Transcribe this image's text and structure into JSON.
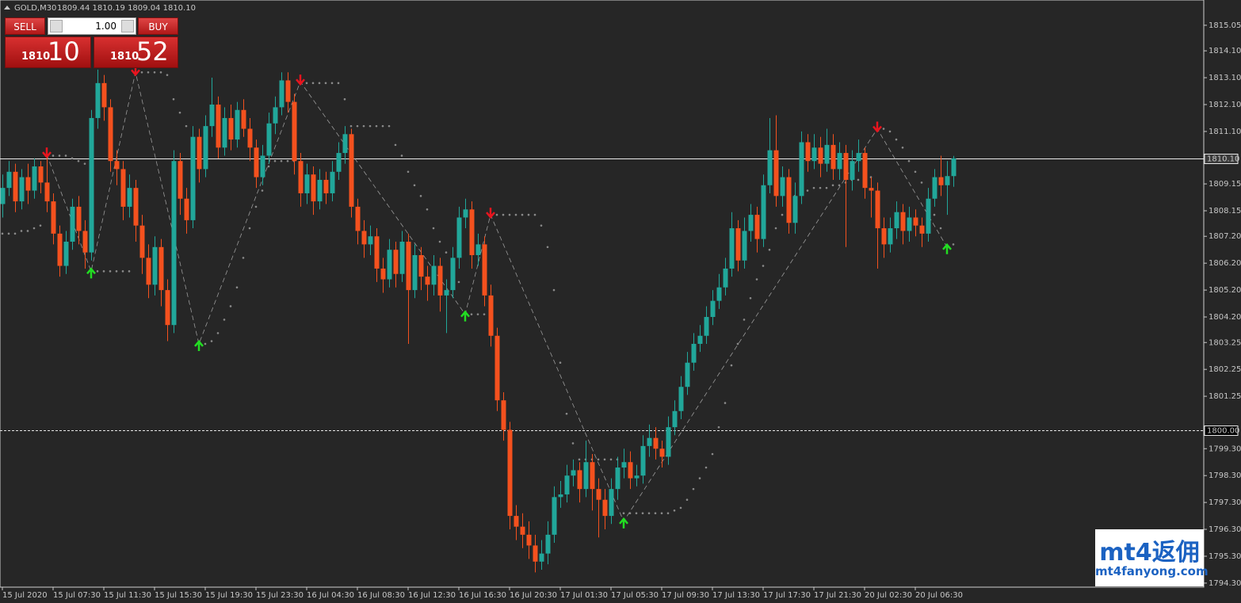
{
  "header": {
    "symbol": "GOLD,M30",
    "ohlc": "1809.44 1810.19 1809.04 1810.10"
  },
  "trade": {
    "sell_label": "SELL",
    "buy_label": "BUY",
    "lots": "1.00",
    "bid_prefix": "1810",
    "bid_digits": "10",
    "ask_prefix": "1810",
    "ask_digits": "52"
  },
  "watermark": {
    "logo_latin": "mt4",
    "logo_cjk": "返佣",
    "url": "mt4fanyong.com"
  },
  "chart_data": {
    "type": "candlestick",
    "up_color": "#21a79a",
    "down_color": "#f4511e",
    "sar_color": "#8a8a8a",
    "zigzag_color": "#9a9a9a",
    "fractal_up_color": "#22dd22",
    "fractal_down_color": "#e8141e",
    "ylim": [
      1794.15,
      1815.99
    ],
    "yticks": [
      1815.05,
      {
        "value": 1814.1,
        "label": "1814.10"
      },
      {
        "value": 1813.1,
        "label": "1813.10"
      },
      {
        "value": 1812.1,
        "label": "1812.10"
      },
      {
        "value": 1811.1,
        "label": "1811.10"
      },
      1809.15,
      1808.15,
      {
        "value": 1807.2,
        "label": "1807.20"
      },
      {
        "value": 1806.2,
        "label": "1806.20"
      },
      {
        "value": 1805.2,
        "label": "1805.20"
      },
      {
        "value": 1804.2,
        "label": "1804.20"
      },
      1803.25,
      1802.25,
      1801.25,
      {
        "value": 1799.3,
        "label": "1799.30"
      },
      {
        "value": 1798.3,
        "label": "1798.30"
      },
      {
        "value": 1797.3,
        "label": "1797.30"
      },
      {
        "value": 1796.3,
        "label": "1796.30"
      },
      {
        "value": 1795.3,
        "label": "1795.30"
      },
      {
        "value": 1794.3,
        "label": "1794.30"
      }
    ],
    "hlines": [
      {
        "value": 1810.1,
        "label": "1810.10",
        "style": "solid"
      },
      {
        "value": 1800,
        "label": "1800.00",
        "style": "dashed"
      }
    ],
    "categories": [
      "15 Jul 2020",
      null,
      null,
      null,
      null,
      null,
      null,
      null,
      "15 Jul 07:30",
      null,
      null,
      null,
      null,
      null,
      null,
      null,
      "15 Jul 11:30",
      null,
      null,
      null,
      null,
      null,
      null,
      null,
      "15 Jul 15:30",
      null,
      null,
      null,
      null,
      null,
      null,
      null,
      "15 Jul 19:30",
      null,
      null,
      null,
      null,
      null,
      null,
      null,
      "15 Jul 23:30",
      null,
      null,
      null,
      null,
      null,
      null,
      null,
      "16 Jul 04:30",
      null,
      null,
      null,
      null,
      null,
      null,
      null,
      "16 Jul 08:30",
      null,
      null,
      null,
      null,
      null,
      null,
      null,
      "16 Jul 12:30",
      null,
      null,
      null,
      null,
      null,
      null,
      null,
      "16 Jul 16:30",
      null,
      null,
      null,
      null,
      null,
      null,
      null,
      "16 Jul 20:30",
      null,
      null,
      null,
      null,
      null,
      null,
      null,
      "17 Jul 01:30",
      null,
      null,
      null,
      null,
      null,
      null,
      null,
      "17 Jul 05:30",
      null,
      null,
      null,
      null,
      null,
      null,
      null,
      "17 Jul 09:30",
      null,
      null,
      null,
      null,
      null,
      null,
      null,
      "17 Jul 13:30",
      null,
      null,
      null,
      null,
      null,
      null,
      null,
      "17 Jul 17:30",
      null,
      null,
      null,
      null,
      null,
      null,
      null,
      "17 Jul 21:30",
      null,
      null,
      null,
      null,
      null,
      null,
      null,
      "20 Jul 02:30",
      null,
      null,
      null,
      null,
      null,
      null,
      null,
      "20 Jul 06:30",
      null,
      null,
      null,
      null,
      null,
      null
    ],
    "open": [
      1808.4,
      1809.0,
      1809.6,
      1808.5,
      1809.4,
      1808.9,
      1809.8,
      1809.2,
      1808.5,
      1807.3,
      1806.1,
      1807.0,
      1808.3,
      1807.4,
      1806.6,
      1811.6,
      1812.9,
      1812.0,
      1810.0,
      1809.7,
      1808.3,
      1809.0,
      1807.6,
      1806.4,
      1805.4,
      1806.8,
      1805.2,
      1803.9,
      1810.0,
      1808.6,
      1807.8,
      1810.9,
      1809.7,
      1811.3,
      1812.1,
      1810.5,
      1811.6,
      1810.8,
      1811.9,
      1811.2,
      1810.5,
      1809.4,
      1810.2,
      1811.4,
      1812.0,
      1813.0,
      1812.2,
      1810.0,
      1808.8,
      1809.5,
      1808.5,
      1809.3,
      1808.8,
      1809.6,
      1810.3,
      1811.0,
      1808.3,
      1807.4,
      1806.9,
      1807.2,
      1806.0,
      1805.6,
      1806.7,
      1805.8,
      1807.0,
      1805.2,
      1806.5,
      1805.7,
      1805.4,
      1806.1,
      1805.0,
      1805.2,
      1806.4,
      1807.9,
      1808.2,
      1806.5,
      1806.9,
      1805.0,
      1803.5,
      1801.1,
      1800.0,
      1796.8,
      1796.4,
      1796.1,
      1795.7,
      1795.1,
      1795.4,
      1796.1,
      1797.5,
      1797.6,
      1798.3,
      1798.5,
      1797.8,
      1798.8,
      1797.8,
      1797.4,
      1796.8,
      1797.8,
      1798.6,
      1798.8,
      1798.2,
      1798.3,
      1799.4,
      1799.7,
      1799.3,
      1799.0,
      1800.1,
      1800.7,
      1801.6,
      1802.5,
      1803.2,
      1803.5,
      1804.2,
      1804.8,
      1805.3,
      1806.0,
      1807.5,
      1806.3,
      1807.4,
      1808.0,
      1807.1,
      1809.1,
      1810.4,
      1808.7,
      1809.4,
      1807.7,
      1808.7,
      1810.7,
      1810.0,
      1810.5,
      1809.9,
      1810.6,
      1809.7,
      1810.3,
      1809.3,
      1810.0,
      1810.3,
      1809.0,
      1808.9,
      1807.5,
      1806.9,
      1807.5,
      1808.1,
      1807.4,
      1807.9,
      1807.6,
      1807.3,
      1808.6,
      1809.4,
      1809.1,
      1809.44
    ],
    "high": [
      1809.5,
      1810.0,
      1809.9,
      1809.7,
      1809.9,
      1810.1,
      1810.0,
      1810.2,
      1808.8,
      1807.6,
      1807.4,
      1808.6,
      1808.7,
      1807.8,
      1811.9,
      1813.4,
      1813.2,
      1812.3,
      1810.4,
      1810.0,
      1809.5,
      1809.3,
      1808.0,
      1806.9,
      1807.2,
      1807.1,
      1805.6,
      1810.4,
      1810.3,
      1809.0,
      1811.3,
      1811.2,
      1811.7,
      1813.1,
      1812.4,
      1812.0,
      1812.1,
      1812.2,
      1812.3,
      1811.6,
      1810.8,
      1810.6,
      1811.8,
      1812.4,
      1813.3,
      1813.3,
      1812.5,
      1810.3,
      1809.9,
      1809.8,
      1809.7,
      1809.6,
      1810.0,
      1810.7,
      1811.3,
      1811.2,
      1808.6,
      1807.8,
      1807.6,
      1807.5,
      1806.4,
      1807.1,
      1807.0,
      1807.4,
      1807.3,
      1806.9,
      1806.8,
      1806.1,
      1806.5,
      1806.4,
      1805.6,
      1806.8,
      1808.3,
      1808.6,
      1808.5,
      1807.3,
      1807.2,
      1805.4,
      1803.8,
      1801.4,
      1800.3,
      1797.2,
      1796.9,
      1796.6,
      1796.1,
      1795.9,
      1796.6,
      1797.9,
      1798.1,
      1798.7,
      1798.9,
      1798.8,
      1799.6,
      1799.1,
      1798.2,
      1797.8,
      1798.2,
      1799.0,
      1799.3,
      1799.2,
      1798.7,
      1799.8,
      1800.2,
      1800.1,
      1799.6,
      1800.5,
      1801.1,
      1802.0,
      1802.9,
      1803.6,
      1803.9,
      1804.6,
      1805.2,
      1805.8,
      1806.4,
      1808.1,
      1807.8,
      1807.9,
      1808.4,
      1808.3,
      1809.5,
      1811.6,
      1811.7,
      1809.8,
      1809.7,
      1809.2,
      1811.1,
      1811.0,
      1811.0,
      1810.9,
      1811.2,
      1811.0,
      1810.7,
      1810.6,
      1810.4,
      1810.8,
      1810.5,
      1809.4,
      1809.2,
      1807.9,
      1807.9,
      1808.5,
      1808.4,
      1808.3,
      1808.2,
      1807.9,
      1809.0,
      1809.7,
      1810.2,
      1810.0,
      1810.19
    ],
    "low": [
      1807.9,
      1808.7,
      1808.1,
      1808.2,
      1808.4,
      1808.6,
      1808.8,
      1808.1,
      1806.9,
      1805.7,
      1805.8,
      1806.7,
      1806.9,
      1806.0,
      1806.3,
      1811.2,
      1811.5,
      1809.6,
      1809.1,
      1807.8,
      1807.9,
      1807.0,
      1805.8,
      1804.9,
      1805.0,
      1804.6,
      1803.3,
      1803.6,
      1808.0,
      1807.3,
      1807.5,
      1809.2,
      1809.4,
      1810.9,
      1810.1,
      1810.2,
      1810.4,
      1810.5,
      1810.9,
      1810.0,
      1809.0,
      1809.1,
      1809.9,
      1811.0,
      1811.7,
      1811.8,
      1809.5,
      1808.3,
      1808.4,
      1808.0,
      1808.2,
      1808.4,
      1808.5,
      1809.3,
      1809.9,
      1807.9,
      1806.9,
      1806.4,
      1806.5,
      1805.5,
      1805.1,
      1805.3,
      1805.3,
      1805.5,
      1803.2,
      1804.9,
      1805.2,
      1804.8,
      1805.0,
      1804.4,
      1803.6,
      1804.9,
      1806.0,
      1807.5,
      1806.0,
      1806.1,
      1804.6,
      1803.1,
      1800.7,
      1799.6,
      1796.3,
      1795.9,
      1795.6,
      1795.2,
      1794.7,
      1794.8,
      1795.0,
      1795.8,
      1797.1,
      1797.3,
      1797.9,
      1797.3,
      1797.5,
      1797.0,
      1796.0,
      1796.3,
      1796.5,
      1797.4,
      1798.2,
      1797.8,
      1797.9,
      1798.0,
      1799.0,
      1798.9,
      1798.6,
      1798.7,
      1799.8,
      1800.4,
      1801.3,
      1802.2,
      1802.9,
      1803.2,
      1803.9,
      1804.5,
      1805.0,
      1805.7,
      1805.9,
      1806.0,
      1807.0,
      1806.6,
      1806.8,
      1808.8,
      1808.3,
      1808.3,
      1807.3,
      1807.3,
      1808.4,
      1809.6,
      1809.7,
      1809.4,
      1809.6,
      1809.3,
      1809.3,
      1806.8,
      1808.9,
      1809.6,
      1808.6,
      1807.9,
      1806.0,
      1806.4,
      1806.6,
      1807.1,
      1806.9,
      1807.0,
      1807.2,
      1806.8,
      1807.0,
      1808.3,
      1808.7,
      1808.0,
      1809.04
    ],
    "close": [
      1809.0,
      1809.6,
      1808.5,
      1809.4,
      1808.9,
      1809.8,
      1809.2,
      1808.5,
      1807.3,
      1806.1,
      1807.0,
      1808.3,
      1807.4,
      1806.6,
      1811.6,
      1812.9,
      1812.0,
      1810.0,
      1809.7,
      1808.3,
      1809.0,
      1807.6,
      1806.4,
      1805.4,
      1806.8,
      1805.2,
      1803.9,
      1810.0,
      1808.6,
      1807.8,
      1810.9,
      1809.7,
      1811.3,
      1812.1,
      1810.5,
      1811.6,
      1810.8,
      1811.9,
      1811.2,
      1810.5,
      1809.4,
      1810.2,
      1811.4,
      1812.0,
      1813.0,
      1812.2,
      1810.0,
      1808.8,
      1809.5,
      1808.5,
      1809.3,
      1808.8,
      1809.6,
      1810.3,
      1811.0,
      1808.3,
      1807.4,
      1806.9,
      1807.2,
      1806.0,
      1805.6,
      1806.7,
      1805.8,
      1807.0,
      1805.2,
      1806.5,
      1805.7,
      1805.4,
      1806.1,
      1805.0,
      1805.2,
      1806.4,
      1807.9,
      1808.2,
      1806.5,
      1806.9,
      1805.0,
      1803.5,
      1801.1,
      1800.0,
      1796.8,
      1796.4,
      1796.1,
      1795.7,
      1795.1,
      1795.4,
      1796.1,
      1797.5,
      1797.6,
      1798.3,
      1798.5,
      1797.8,
      1798.8,
      1797.8,
      1797.4,
      1796.8,
      1797.8,
      1798.6,
      1798.8,
      1798.2,
      1798.3,
      1799.4,
      1799.7,
      1799.3,
      1799.0,
      1800.1,
      1800.7,
      1801.6,
      1802.5,
      1803.2,
      1803.5,
      1804.2,
      1804.8,
      1805.3,
      1806.0,
      1807.5,
      1806.3,
      1807.4,
      1808.0,
      1807.1,
      1809.1,
      1810.4,
      1808.7,
      1809.4,
      1807.7,
      1808.7,
      1810.7,
      1810.0,
      1810.5,
      1809.9,
      1810.6,
      1809.7,
      1810.3,
      1809.3,
      1810.0,
      1810.3,
      1809.0,
      1808.9,
      1807.5,
      1806.9,
      1807.5,
      1808.1,
      1807.4,
      1807.9,
      1807.6,
      1807.3,
      1808.6,
      1809.4,
      1809.1,
      1809.44,
      1810.1
    ],
    "sar": [
      1807.3,
      1807.3,
      1807.3,
      1807.4,
      1807.4,
      1807.5,
      1807.6,
      1810.2,
      1810.2,
      1810.2,
      1810.2,
      1810.1,
      1810.0,
      1809.9,
      1805.9,
      1805.9,
      1805.9,
      1805.9,
      1805.9,
      1805.9,
      1805.9,
      1813.3,
      1813.3,
      1813.3,
      1813.3,
      1813.3,
      1813.2,
      1812.3,
      1811.8,
      1811.3,
      1810.8,
      1803.2,
      1803.2,
      1803.3,
      1803.6,
      1804.1,
      1804.6,
      1805.3,
      1806.4,
      1807.5,
      1808.3,
      1808.9,
      1809.8,
      1810.0,
      1810.0,
      1810.0,
      1810.0,
      1812.9,
      1812.9,
      1812.9,
      1812.9,
      1812.9,
      1812.9,
      1812.9,
      1812.3,
      1811.3,
      1811.3,
      1811.3,
      1811.3,
      1811.3,
      1811.3,
      1811.3,
      1810.6,
      1810.2,
      1809.6,
      1809.1,
      1808.7,
      1808.2,
      1807.5,
      1807.0,
      1806.6,
      1806.2,
      1805.5,
      1804.3,
      1804.3,
      1804.3,
      1804.3,
      1808.0,
      1808.0,
      1808.0,
      1808.0,
      1808.0,
      1808.0,
      1808.0,
      1808.0,
      1807.6,
      1806.8,
      1805.2,
      1802.5,
      1800.6,
      1799.5,
      1798.9,
      1798.9,
      1798.9,
      1798.9,
      1798.9,
      1798.9,
      1798.9,
      1796.9,
      1796.9,
      1796.9,
      1796.9,
      1796.9,
      1796.9,
      1796.9,
      1796.9,
      1797.0,
      1797.1,
      1797.4,
      1797.8,
      1798.2,
      1798.6,
      1799.1,
      1800.1,
      1801.0,
      1802.4,
      1803.2,
      1804.1,
      1804.9,
      1805.6,
      1806.1,
      1806.7,
      1807.5,
      1808.0,
      1808.5,
      1808.7,
      1808.8,
      1808.9,
      1809.0,
      1809.0,
      1809.0,
      1809.1,
      1809.1,
      1809.2,
      1809.3,
      1809.3,
      1809.4,
      1809.4,
      1811.2,
      1811.2,
      1811.1,
      1810.8,
      1810.5,
      1810.0,
      1809.6,
      1809.2,
      1808.5,
      1808.0,
      1807.5,
      1806.8,
      1806.9
    ],
    "zigzag": {
      "bars": [
        7,
        14,
        21,
        31,
        47,
        73,
        77,
        98,
        138,
        149
      ],
      "prices": [
        1810.24,
        1805.9,
        1813.3,
        1803.2,
        1812.95,
        1804.3,
        1808.0,
        1796.6,
        1811.2,
        1806.8
      ]
    }
  }
}
